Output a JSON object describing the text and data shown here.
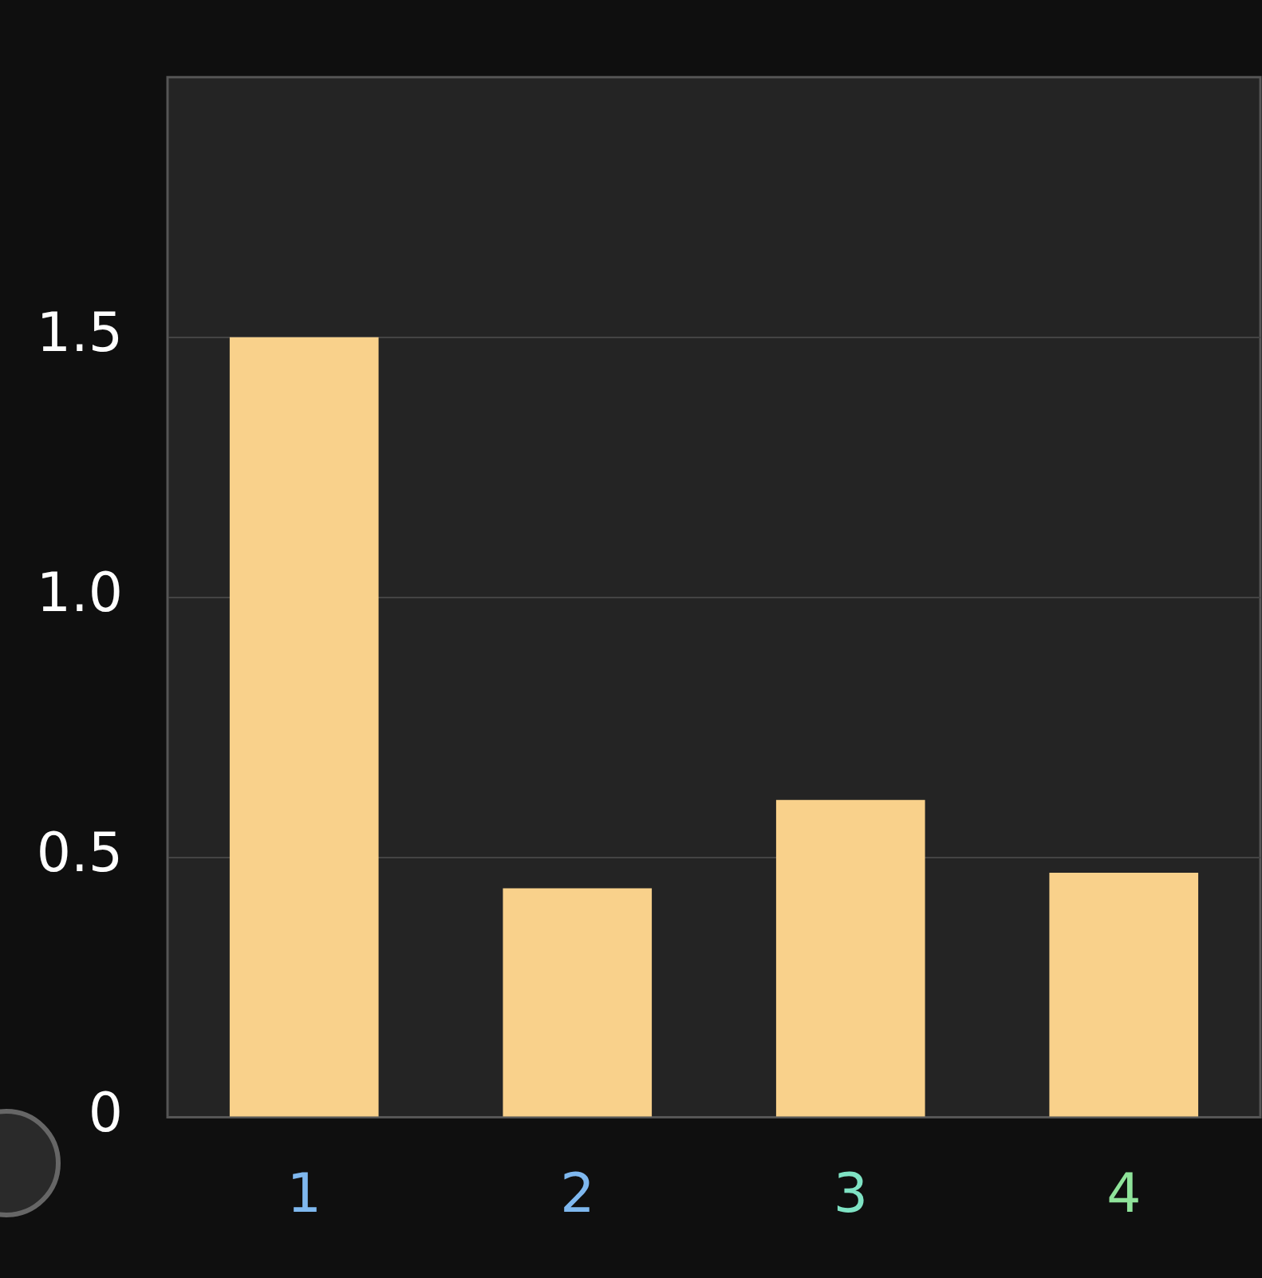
{
  "chart_data": {
    "type": "bar",
    "categories": [
      "1",
      "2",
      "3",
      "4"
    ],
    "values": [
      1.5,
      0.44,
      0.61,
      0.47
    ],
    "color": "#f9d18b",
    "ylim": [
      0,
      2
    ],
    "yticks": [
      0,
      0.5,
      {
        "value": 1,
        "label": "1.0"
      },
      1.5
    ],
    "grid": "y",
    "legend": false
  }
}
